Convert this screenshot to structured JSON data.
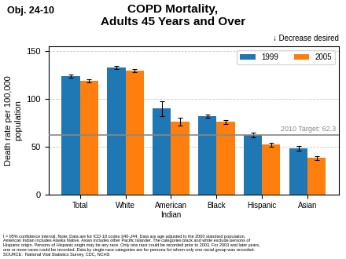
{
  "chart_data": {
    "type": "bar",
    "title": "COPD Mortality,\nAdults 45 Years and Over",
    "ylabel": "Death rate per 100,000\npopulation",
    "categories": [
      "Total",
      "White",
      "American\nIndian",
      "Black",
      "Hispanic",
      "Asian"
    ],
    "series": [
      {
        "name": "1999",
        "values": [
          124,
          133,
          90,
          82,
          62,
          48
        ],
        "errors": [
          1.5,
          1.5,
          8,
          2,
          2.5,
          2.5
        ]
      },
      {
        "name": "2005",
        "values": [
          119,
          130,
          76,
          76,
          52,
          38
        ],
        "errors": [
          1.5,
          1.5,
          4,
          2,
          2,
          2
        ]
      }
    ],
    "reference_line": {
      "value": 62.3,
      "label": "2010 Target: 62.3",
      "color": "#888888"
    },
    "annotations": [
      "↓ Decrease desired",
      "Obj. 24-10"
    ],
    "footnote": "I = 95% confidence interval. Note: Data are for ICD-10 codes 340-J44. Data are age adjusted to the 2000 standard population.\nAmerican Indian includes Alaska Native. Asian includes other Pacific Islander. The categories black and white exclude persons of\nHispanic origin. Persons of Hispanic origin may be any race. Only one race could be recorded prior to 2003. For 2003 and later years,\none or more races could be recorded. Data by single-race categories are for persons for whom only one racial group was recorded.\nSOURCE:  National Vital Statistics Survey, CDC, NCHS",
    "ylim": [
      0,
      155
    ],
    "yticks": [
      0,
      50,
      100,
      150
    ],
    "grid": true,
    "legend": "upper right"
  }
}
